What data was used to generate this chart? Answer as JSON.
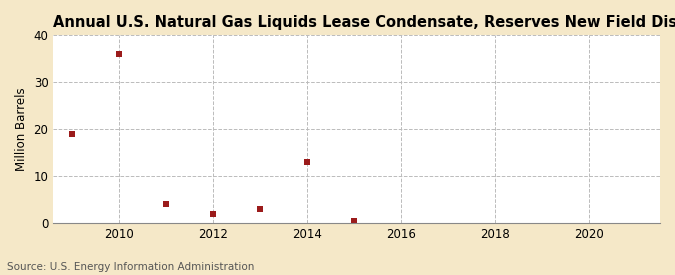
{
  "title": "Annual U.S. Natural Gas Liquids Lease Condensate, Reserves New Field Discoveries",
  "ylabel": "Million Barrels",
  "source": "Source: U.S. Energy Information Administration",
  "years": [
    2009,
    2010,
    2011,
    2012,
    2013,
    2014,
    2015
  ],
  "values": [
    19.0,
    36.0,
    4.0,
    2.0,
    3.0,
    13.0,
    0.3
  ],
  "marker_color": "#9B1B1B",
  "figure_bg_color": "#F5E8C8",
  "plot_bg_color": "#FFFFFF",
  "grid_color": "#BBBBBB",
  "xlim": [
    2008.6,
    2021.5
  ],
  "ylim": [
    0,
    40
  ],
  "yticks": [
    0,
    10,
    20,
    30,
    40
  ],
  "xticks": [
    2010,
    2012,
    2014,
    2016,
    2018,
    2020
  ],
  "title_fontsize": 10.5,
  "label_fontsize": 8.5,
  "tick_fontsize": 8.5,
  "source_fontsize": 7.5
}
